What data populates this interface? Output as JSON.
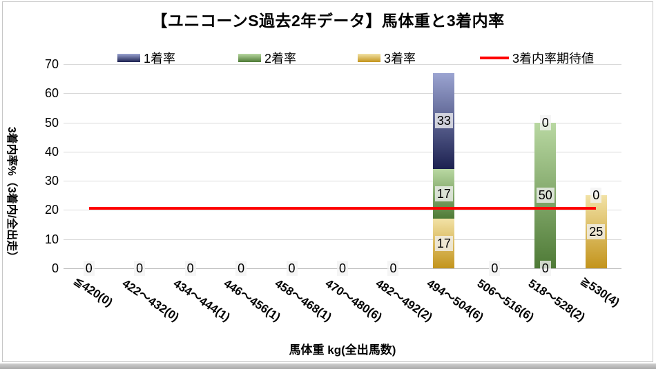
{
  "chart_data": {
    "type": "bar",
    "stacked": true,
    "title": "【ユニコーンS過去2年データ】馬体重と3着内率",
    "xlabel": "馬体重 kg(全出馬数)",
    "ylabel": "3着内率%（3着内/全出走）",
    "ylim": [
      0,
      70
    ],
    "yticks": [
      0,
      10,
      20,
      30,
      40,
      50,
      60,
      70
    ],
    "grid": true,
    "grid_color": "#d9d9d9",
    "axis_color": "#bfbfbf",
    "legend_position": "top",
    "categories": [
      "≦420(0)",
      "422～432(0)",
      "434～444(1)",
      "446～456(1)",
      "458～468(1)",
      "470～480(6)",
      "482～492(2)",
      "494～504(6)",
      "506～516(6)",
      "518～528(2)",
      "≧530(4)"
    ],
    "series": [
      {
        "name": "1着率",
        "color_light": "#9ba4d1",
        "color_dark": "#1c2150",
        "values": [
          0,
          0,
          0,
          0,
          0,
          0,
          0,
          33,
          0,
          0,
          0
        ]
      },
      {
        "name": "2着率",
        "color_light": "#b9d8a2",
        "color_dark": "#4e7a36",
        "values": [
          0,
          0,
          0,
          0,
          0,
          0,
          0,
          17,
          0,
          50,
          0
        ]
      },
      {
        "name": "3着率",
        "color_light": "#f2e2a6",
        "color_dark": "#c3941c",
        "values": [
          0,
          0,
          0,
          0,
          0,
          0,
          0,
          17,
          0,
          0,
          25
        ]
      }
    ],
    "expected_line": {
      "name": "3着内率期待値",
      "value": 20.5,
      "color": "#ff0000"
    },
    "label_background": "#f2f2f2"
  }
}
